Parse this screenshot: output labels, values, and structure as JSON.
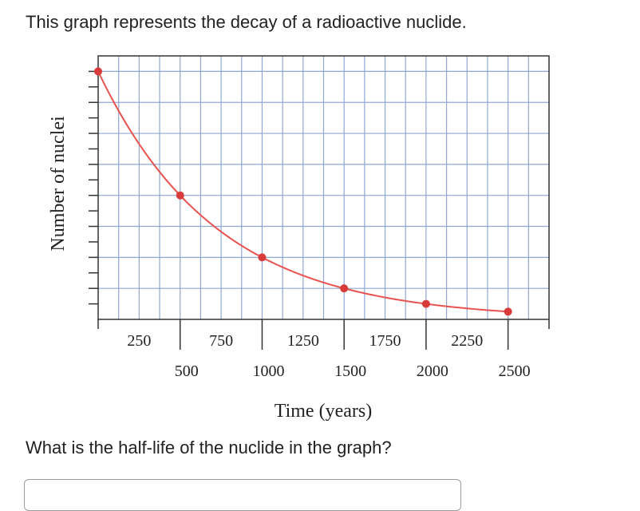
{
  "prompt": "This graph represents the decay of a radioactive nuclide.",
  "question": "What is the half-life of the nuclide in the graph?",
  "answer": {
    "value": ""
  },
  "colors": {
    "curve": "#e8524f",
    "point": "#d93a3a",
    "grid": "#8fa7d4",
    "axis": "#333333",
    "text": "#222222"
  },
  "chart_data": {
    "type": "line",
    "xlabel": "Time (years)",
    "ylabel": "Number of nuclei",
    "xlim": [
      0,
      2750
    ],
    "ylim": [
      0,
      8.5
    ],
    "grid": true,
    "x_ticks_upper": [
      "250",
      "750",
      "1250",
      "1750",
      "2250"
    ],
    "x_ticks_lower": [
      "500",
      "1000",
      "1500",
      "2000",
      "2500"
    ],
    "series": [
      {
        "x": [
          0,
          500,
          1000,
          1500,
          2000,
          2500
        ],
        "y": [
          8,
          4,
          2,
          1,
          0.5,
          0.25
        ]
      }
    ]
  }
}
